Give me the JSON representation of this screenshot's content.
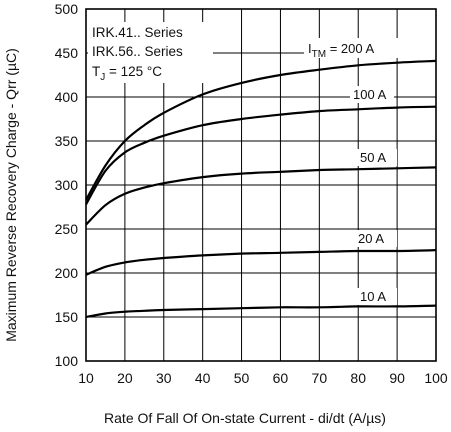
{
  "chart_data": {
    "type": "line",
    "xlabel": "Rate Of Fall Of On-state Current - di/dt (A/µs)",
    "ylabel": "Maximum Reverse Recovery Charge - Qrr (µC)",
    "xlim": [
      10,
      100
    ],
    "ylim": [
      100,
      500
    ],
    "xticks": [
      "10",
      "20",
      "30",
      "40",
      "50",
      "60",
      "70",
      "80",
      "90",
      "100"
    ],
    "yticks": [
      "100",
      "150",
      "200",
      "250",
      "300",
      "350",
      "400",
      "450",
      "500"
    ],
    "grid": true,
    "annotation": {
      "line1": "IRK.41.. Series",
      "line2": "IRK.56.. Series",
      "line3_symbol": "T",
      "line3_sub": "J",
      "line3_rest": " = 125 °C"
    },
    "series": [
      {
        "label_symbol": "I",
        "label_sub": "TM",
        "label_rest": " = 200 A",
        "x": [
          10,
          15,
          20,
          25,
          30,
          40,
          50,
          60,
          70,
          80,
          90,
          100
        ],
        "values": [
          283,
          322,
          350,
          368,
          382,
          403,
          416,
          425,
          431,
          436,
          439,
          441
        ]
      },
      {
        "name": "100 A",
        "x": [
          10,
          15,
          20,
          25,
          30,
          40,
          50,
          60,
          70,
          80,
          90,
          100
        ],
        "values": [
          278,
          316,
          337,
          348,
          356,
          368,
          375,
          380,
          384,
          386,
          388,
          389
        ]
      },
      {
        "name": "50 A",
        "x": [
          10,
          15,
          20,
          25,
          30,
          40,
          50,
          60,
          70,
          80,
          90,
          100
        ],
        "values": [
          255,
          277,
          290,
          297,
          302,
          309,
          313,
          315,
          317,
          318,
          319,
          320
        ]
      },
      {
        "name": "20 A",
        "x": [
          10,
          15,
          20,
          25,
          30,
          40,
          50,
          60,
          70,
          80,
          90,
          100
        ],
        "values": [
          198,
          207,
          212,
          215,
          217,
          220,
          222,
          223,
          224,
          225,
          225,
          226
        ]
      },
      {
        "name": "10 A",
        "x": [
          10,
          15,
          20,
          25,
          30,
          40,
          50,
          60,
          70,
          80,
          90,
          100
        ],
        "values": [
          150,
          154,
          156,
          157,
          158,
          159,
          160,
          161,
          161,
          162,
          162,
          163
        ]
      }
    ]
  }
}
